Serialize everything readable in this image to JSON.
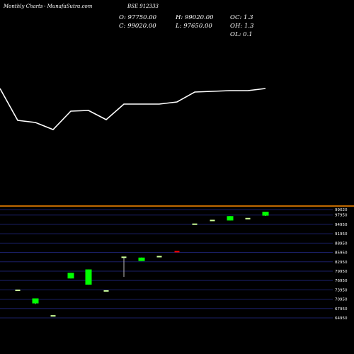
{
  "header": {
    "brand": "Monthly Charts",
    "site": "- MunafaSutra.com",
    "symbol": "BSE 912333"
  },
  "ohlc": {
    "open": "O: 97750.00",
    "high": "H: 99020.00",
    "oc": "OC: 1.3",
    "close": "C: 99020.00",
    "low": "L: 97650.00",
    "oh": "OH: 1.3",
    "ol": "OL: 0.1"
  },
  "colors": {
    "background": "#000000",
    "line": "#ffffff",
    "up": "#00ff00",
    "down": "#ff0000",
    "neutral": "#ccff99",
    "grid": "#1a1f66",
    "divider": "#ff8c00"
  },
  "chart_data": {
    "type": "candlestick",
    "y_ticks": [
      "99020",
      "97950",
      "94950",
      "91950",
      "88950",
      "85950",
      "82950",
      "79950",
      "76950",
      "73950",
      "70950",
      "67950",
      "64950"
    ],
    "candles": [
      {
        "open": 73800,
        "high": 73800,
        "low": 73800,
        "close": 73800,
        "color": "neutral"
      },
      {
        "open": 71200,
        "high": 71200,
        "low": 69400,
        "close": 69600,
        "color": "up"
      },
      {
        "open": 65600,
        "high": 65600,
        "low": 65600,
        "close": 65600,
        "color": "neutral"
      },
      {
        "open": 77600,
        "high": 79400,
        "low": 77600,
        "close": 79400,
        "color": "up"
      },
      {
        "open": 75600,
        "high": 80500,
        "low": 75600,
        "close": 80500,
        "color": "up"
      },
      {
        "open": 73600,
        "high": 73600,
        "low": 73600,
        "close": 73600,
        "color": "neutral"
      },
      {
        "open": 84400,
        "high": 84400,
        "low": 78100,
        "close": 84400,
        "color": "neutral"
      },
      {
        "open": 83200,
        "high": 84300,
        "low": 83200,
        "close": 84300,
        "color": "up"
      },
      {
        "open": 84600,
        "high": 84600,
        "low": 84600,
        "close": 84600,
        "color": "neutral"
      },
      {
        "open": 86200,
        "high": 86200,
        "low": 86200,
        "close": 85900,
        "color": "down"
      },
      {
        "open": 95000,
        "high": 95000,
        "low": 95000,
        "close": 95000,
        "color": "neutral"
      },
      {
        "open": 96200,
        "high": 96200,
        "low": 96200,
        "close": 96200,
        "color": "neutral"
      },
      {
        "open": 96200,
        "high": 97600,
        "low": 96200,
        "close": 97600,
        "color": "up"
      },
      {
        "open": 96800,
        "high": 96800,
        "low": 96800,
        "close": 96800,
        "color": "neutral"
      },
      {
        "open": 97750,
        "high": 99020,
        "low": 97650,
        "close": 99020,
        "color": "up"
      }
    ],
    "line_values": [
      125,
      170,
      173,
      183,
      157,
      156,
      169,
      147,
      147,
      147,
      144,
      130,
      129,
      128,
      128,
      125
    ]
  }
}
